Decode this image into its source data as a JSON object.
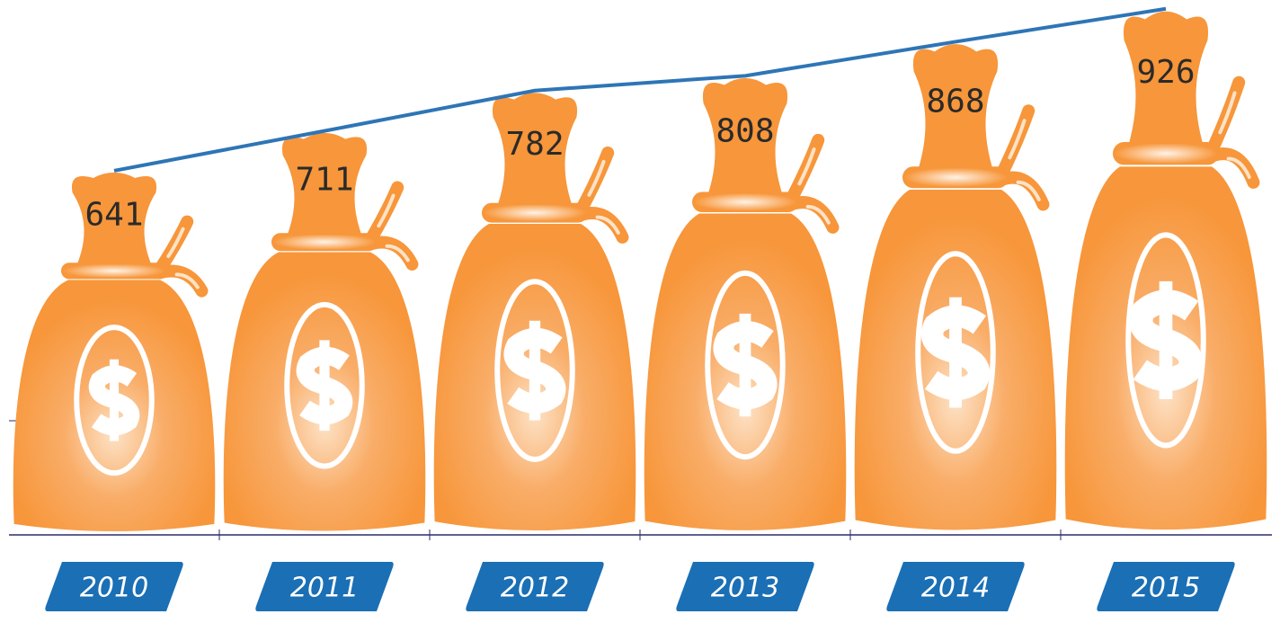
{
  "chart_data": {
    "type": "pictograph",
    "categories": [
      "2010",
      "2011",
      "2012",
      "2013",
      "2014",
      "2015"
    ],
    "values": [
      641,
      711,
      782,
      808,
      868,
      926
    ],
    "color": "#f7963a",
    "line_color": "#2e75b6",
    "label_color": "#1a6fb5"
  }
}
